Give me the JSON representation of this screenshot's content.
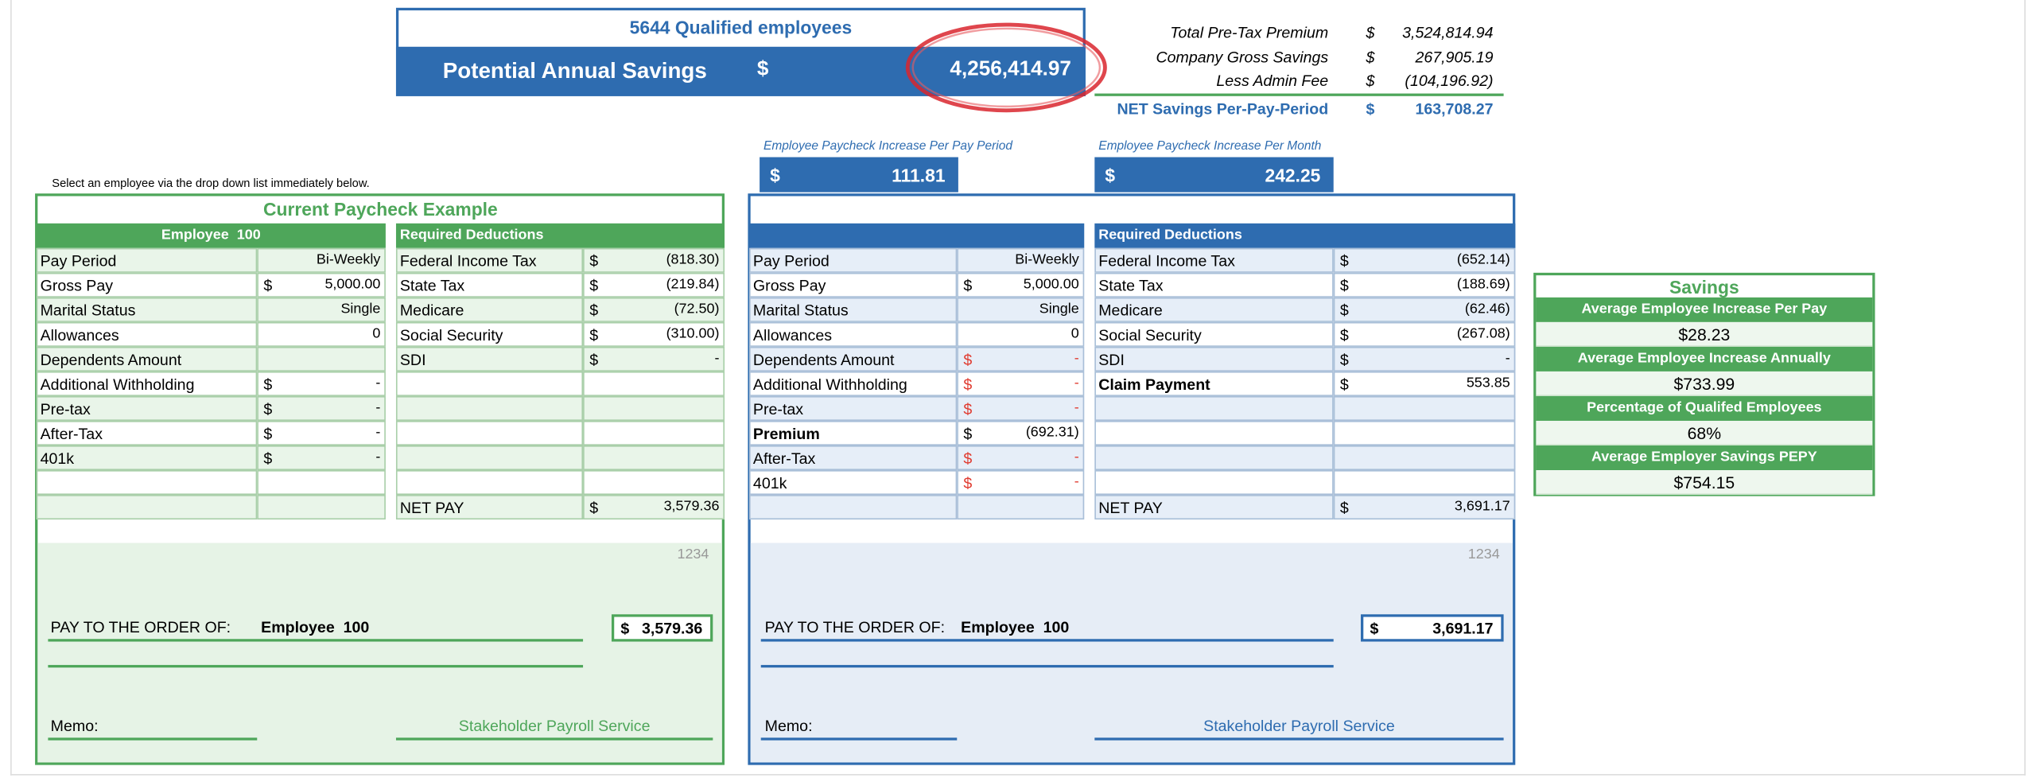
{
  "header": {
    "employees": "5644 Qualified employees",
    "savings_label": "Potential Annual Savings",
    "savings_currency": "$",
    "savings_value": "4,256,414.97"
  },
  "summary": {
    "rows": [
      {
        "label": "Total Pre-Tax Premium",
        "currency": "$",
        "value": "3,524,814.94"
      },
      {
        "label": "Company Gross Savings",
        "currency": "$",
        "value": "267,905.19"
      },
      {
        "label": "Less Admin Fee",
        "currency": "$",
        "value": "(104,196.92)"
      }
    ],
    "net": {
      "label": "NET Savings Per-Pay-Period",
      "currency": "$",
      "value": "163,708.27"
    }
  },
  "increase": [
    {
      "label": "Employee Paycheck Increase Per Pay Period",
      "currency": "$",
      "value": "111.81"
    },
    {
      "label": "Employee Paycheck Increase Per Month",
      "currency": "$",
      "value": "242.25"
    }
  ],
  "instruction": "Select an employee via the drop down list immediately below.",
  "current": {
    "title": "Current Paycheck Example",
    "employee_header": "Employee  100",
    "deductions_header": "Required Deductions",
    "details": [
      {
        "label": "Pay Period",
        "value": "Bi-Weekly"
      },
      {
        "label": "Gross Pay",
        "currency": "$",
        "value": "5,000.00"
      },
      {
        "label": "Marital Status",
        "value": "Single"
      },
      {
        "label": "Allowances",
        "value": "0"
      },
      {
        "label": "Dependents Amount"
      },
      {
        "label": "Additional Withholding",
        "currency": "$",
        "value": "-"
      },
      {
        "label": "Pre-tax",
        "currency": "$",
        "value": "-"
      },
      {
        "label": "After-Tax",
        "currency": "$",
        "value": "-"
      },
      {
        "label": "401k",
        "currency": "$",
        "value": "-"
      }
    ],
    "deductions": [
      {
        "label": "Federal Income Tax",
        "currency": "$",
        "value": "(818.30)"
      },
      {
        "label": "State Tax",
        "currency": "$",
        "value": "(219.84)"
      },
      {
        "label": "Medicare",
        "currency": "$",
        "value": "(72.50)"
      },
      {
        "label": "Social Security",
        "currency": "$",
        "value": "(310.00)"
      },
      {
        "label": "SDI",
        "currency": "$",
        "value": "-"
      }
    ],
    "net_pay": {
      "label": "NET PAY",
      "currency": "$",
      "value": "3,579.36"
    },
    "check": {
      "number": "1234",
      "pay_to_label": "PAY TO THE ORDER OF:",
      "payee": "Employee  100",
      "currency": "$",
      "amount": "3,579.36",
      "memo_label": "Memo:",
      "signer": "Stakeholder Payroll Service"
    }
  },
  "proposed": {
    "deductions_header": "Required Deductions",
    "details": [
      {
        "label": "Pay Period",
        "value": "Bi-Weekly"
      },
      {
        "label": "Gross Pay",
        "currency": "$",
        "value": "5,000.00"
      },
      {
        "label": "Marital Status",
        "value": "Single"
      },
      {
        "label": "Allowances",
        "value": "0"
      },
      {
        "label": "Dependents Amount",
        "currency": "$",
        "value": "-",
        "color": "#e03c31"
      },
      {
        "label": "Additional Withholding",
        "currency": "$",
        "value": "-",
        "color": "#e03c31"
      },
      {
        "label": "Pre-tax",
        "currency": "$",
        "value": "-",
        "color": "#e03c31"
      },
      {
        "label": "Premium",
        "currency": "$",
        "value": "(692.31)",
        "bold": true
      },
      {
        "label": "After-Tax",
        "currency": "$",
        "value": "-",
        "color": "#e03c31"
      },
      {
        "label": "401k",
        "currency": "$",
        "value": "-",
        "color": "#e03c31"
      }
    ],
    "deductions": [
      {
        "label": "Federal Income Tax",
        "currency": "$",
        "value": "(652.14)"
      },
      {
        "label": "State Tax",
        "currency": "$",
        "value": "(188.69)"
      },
      {
        "label": "Medicare",
        "currency": "$",
        "value": "(62.46)"
      },
      {
        "label": "Social Security",
        "currency": "$",
        "value": "(267.08)"
      },
      {
        "label": "SDI",
        "currency": "$",
        "value": "-"
      },
      {
        "label": "Claim Payment",
        "currency": "$",
        "value": "553.85",
        "bold": true
      }
    ],
    "net_pay": {
      "label": "NET PAY",
      "currency": "$",
      "value": "3,691.17"
    },
    "check": {
      "number": "1234",
      "pay_to_label": "PAY TO THE ORDER OF:",
      "payee": "Employee  100",
      "currency": "$",
      "amount": "3,691.17",
      "memo_label": "Memo:",
      "signer": "Stakeholder Payroll Service"
    }
  },
  "savings": {
    "title": "Savings",
    "items": [
      {
        "label": "Average Employee Increase Per Pay",
        "value": "$28.23"
      },
      {
        "label": "Average Employee Increase Annually",
        "value": "$733.99"
      },
      {
        "label": "Percentage of Qualifed Employees",
        "value": "68%"
      },
      {
        "label": "Average Employer Savings PEPY",
        "value": "$754.15"
      }
    ]
  }
}
